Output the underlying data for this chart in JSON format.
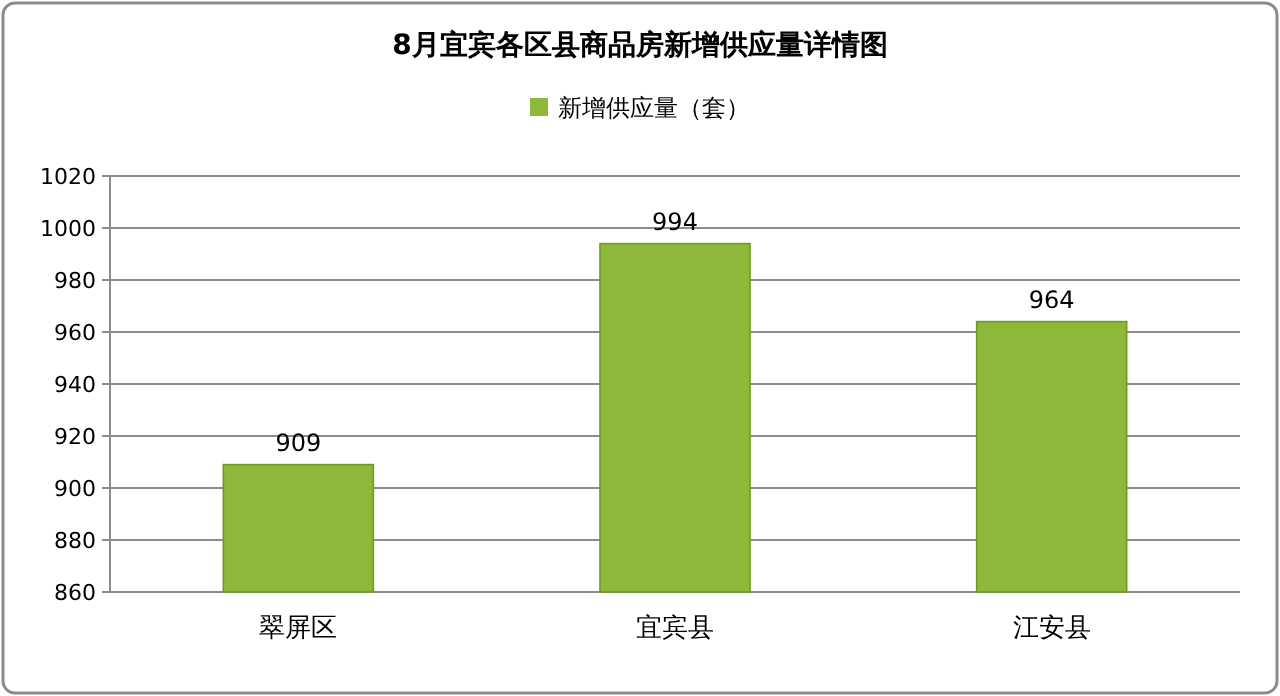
{
  "chart_data": {
    "type": "bar",
    "title": "8月宜宾各区县商品房新增供应量详情图",
    "categories": [
      "翠屏区",
      "宜宾县",
      "江安县"
    ],
    "series": [
      {
        "name": "新增供应量（套）",
        "color": "#8db83a",
        "values": [
          909,
          994,
          964
        ]
      }
    ],
    "ylim": [
      860,
      1020
    ],
    "yticks": [
      860,
      880,
      900,
      920,
      940,
      960,
      980,
      1000,
      1020
    ],
    "grid": "y",
    "legend": "top",
    "data_labels": true
  }
}
